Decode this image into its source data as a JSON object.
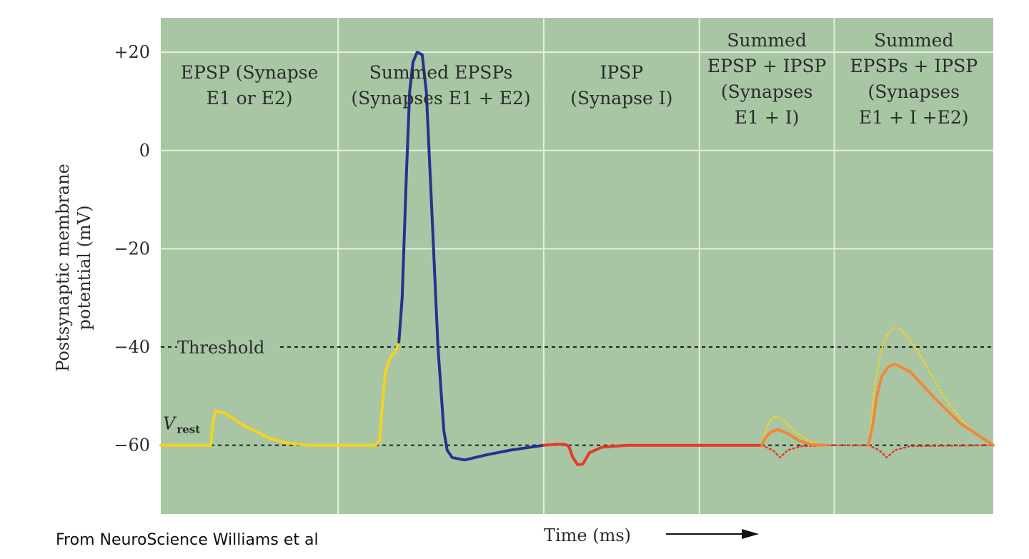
{
  "chart_data": {
    "type": "line",
    "ylabel_lines": [
      "Postsynaptic membrane",
      "potential (mV)"
    ],
    "xlabel": "Time (ms)",
    "y_ticks": [
      {
        "value": 20,
        "label": "+20"
      },
      {
        "value": 0,
        "label": "0"
      },
      {
        "value": -20,
        "label": "−20"
      },
      {
        "value": -40,
        "label": "−40"
      },
      {
        "value": -60,
        "label": "−60"
      }
    ],
    "ylim": [
      -74,
      27
    ],
    "xlim": [
      0,
      100
    ],
    "threshold": {
      "value": -40,
      "label": "Threshold"
    },
    "v_rest": {
      "value": -60,
      "label_main": "V",
      "label_sub": "rest"
    },
    "panels": [
      {
        "title_lines": [
          "EPSP (Synapse",
          "E1 or E2)"
        ],
        "x_start": 0,
        "x_end": 21.3
      },
      {
        "title_lines": [
          "Summed EPSPs",
          "(Synapses E1 + E2)"
        ],
        "x_start": 21.3,
        "x_end": 46
      },
      {
        "title_lines": [
          "IPSP",
          "(Synapse I)"
        ],
        "x_start": 46,
        "x_end": 64.7
      },
      {
        "title_lines": [
          "Summed",
          "EPSP + IPSP",
          "(Synapses",
          "E1 + I)"
        ],
        "x_start": 64.7,
        "x_end": 80.9
      },
      {
        "title_lines": [
          "Summed",
          "EPSPs + IPSP",
          "(Synapses",
          "E1 + I +E2)"
        ],
        "x_start": 80.9,
        "x_end": 100
      }
    ],
    "series": [
      {
        "name": "EPSP",
        "color": "#f5d21f",
        "style": "solid",
        "points": [
          [
            0,
            -60
          ],
          [
            6,
            -60
          ],
          [
            6.3,
            -55
          ],
          [
            6.6,
            -53
          ],
          [
            7.5,
            -53.3
          ],
          [
            10,
            -56
          ],
          [
            13,
            -58.5
          ],
          [
            15,
            -59.5
          ],
          [
            18,
            -60
          ],
          [
            25.8,
            -60
          ],
          [
            26.3,
            -59
          ],
          [
            26.6,
            -52
          ],
          [
            27,
            -45
          ],
          [
            27.6,
            -42
          ],
          [
            28.2,
            -41
          ],
          [
            28.6,
            -39
          ]
        ]
      },
      {
        "name": "Action potential",
        "color": "#2b2f8f",
        "style": "solid",
        "points": [
          [
            28.6,
            -39
          ],
          [
            29,
            -30
          ],
          [
            29.5,
            -5
          ],
          [
            29.9,
            12
          ],
          [
            30.3,
            18
          ],
          [
            30.8,
            20
          ],
          [
            31.4,
            19.5
          ],
          [
            31.9,
            12
          ],
          [
            32.5,
            -10
          ],
          [
            33.3,
            -40
          ],
          [
            34,
            -57
          ],
          [
            34.4,
            -61
          ],
          [
            35,
            -62.5
          ],
          [
            36.5,
            -63
          ],
          [
            39,
            -62
          ],
          [
            42,
            -61
          ],
          [
            46,
            -60
          ]
        ]
      },
      {
        "name": "IPSP",
        "color": "#e8382c",
        "style": "solid",
        "points": [
          [
            46,
            -60
          ],
          [
            47.5,
            -59.8
          ],
          [
            48.5,
            -59.8
          ],
          [
            49,
            -60.2
          ],
          [
            49.5,
            -62.5
          ],
          [
            50.1,
            -64
          ],
          [
            50.7,
            -63.8
          ],
          [
            51.5,
            -61.5
          ],
          [
            53,
            -60.4
          ],
          [
            56,
            -60
          ],
          [
            64.7,
            -60
          ]
        ]
      },
      {
        "name": "IPSP (panel 4)",
        "color": "#e8382c",
        "style": "solid",
        "points": [
          [
            64.7,
            -60
          ],
          [
            72.2,
            -60
          ]
        ]
      },
      {
        "name": "EPSP alone (panel 4)",
        "color": "#f5d21f",
        "style": "dotted",
        "points": [
          [
            72.2,
            -60
          ],
          [
            72.5,
            -58
          ],
          [
            73,
            -55.5
          ],
          [
            73.8,
            -54
          ],
          [
            74.6,
            -54.5
          ],
          [
            76,
            -57
          ],
          [
            78,
            -59.3
          ],
          [
            80,
            -60
          ]
        ]
      },
      {
        "name": "IPSP alone (panel 4)",
        "color": "#e8382c",
        "style": "dotted",
        "points": [
          [
            72.2,
            -60
          ],
          [
            73.5,
            -61
          ],
          [
            74.4,
            -62.5
          ],
          [
            75.3,
            -61
          ],
          [
            77,
            -60.2
          ],
          [
            80.9,
            -60
          ]
        ]
      },
      {
        "name": "Summed EPSP + IPSP",
        "color": "#f2873a",
        "style": "solid",
        "points": [
          [
            72.2,
            -60
          ],
          [
            72.6,
            -58.5
          ],
          [
            73.3,
            -57.3
          ],
          [
            74.1,
            -56.8
          ],
          [
            75.2,
            -57.5
          ],
          [
            76.6,
            -59
          ],
          [
            78,
            -59.8
          ],
          [
            80,
            -60
          ]
        ]
      },
      {
        "name": "Baseline dotted",
        "color": "#e8382c",
        "style": "dotted",
        "points": [
          [
            80,
            -60
          ],
          [
            85,
            -60
          ]
        ]
      },
      {
        "name": "EPSPs alone (panel 5)",
        "color": "#f5d21f",
        "style": "dotted",
        "points": [
          [
            85,
            -60
          ],
          [
            85.4,
            -55
          ],
          [
            85.8,
            -47
          ],
          [
            86.5,
            -41
          ],
          [
            87.1,
            -38
          ],
          [
            88,
            -36
          ],
          [
            89,
            -36.5
          ],
          [
            91,
            -41
          ],
          [
            94,
            -50
          ],
          [
            97,
            -56.5
          ],
          [
            100,
            -60
          ]
        ]
      },
      {
        "name": "IPSP alone (panel 5)",
        "color": "#e8382c",
        "style": "dotted",
        "points": [
          [
            85,
            -60
          ],
          [
            86.3,
            -61
          ],
          [
            87.2,
            -62.5
          ],
          [
            88.2,
            -61
          ],
          [
            90,
            -60.2
          ],
          [
            100,
            -60
          ]
        ]
      },
      {
        "name": "Summed EPSPs + IPSP",
        "color": "#f2873a",
        "style": "solid",
        "points": [
          [
            85,
            -60
          ],
          [
            85.5,
            -56
          ],
          [
            86,
            -50
          ],
          [
            86.6,
            -46
          ],
          [
            87.4,
            -44
          ],
          [
            88.2,
            -43.5
          ],
          [
            90,
            -45
          ],
          [
            93,
            -50.5
          ],
          [
            96,
            -55.5
          ],
          [
            100,
            -60
          ]
        ]
      }
    ]
  },
  "caption": "From NeuroScience Williams et al"
}
